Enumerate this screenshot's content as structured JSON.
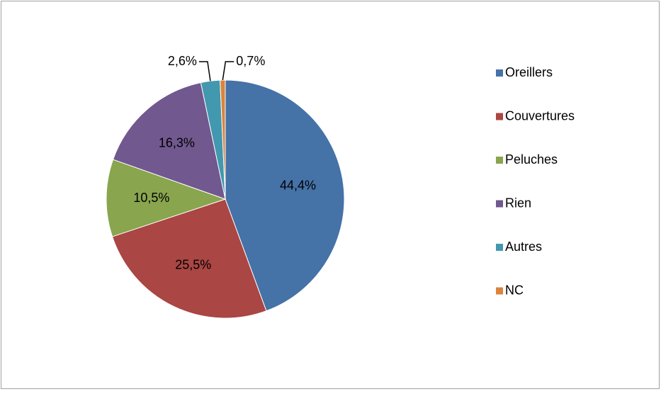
{
  "chart_data": {
    "type": "pie",
    "categories": [
      "Oreillers",
      "Couvertures",
      "Peluches",
      "Rien",
      "Autres",
      "NC"
    ],
    "values": [
      44.4,
      25.5,
      10.5,
      16.3,
      2.6,
      0.7
    ],
    "value_labels": [
      "44,4%",
      "25,5%",
      "10,5%",
      "16,3%",
      "2,6%",
      "0,7%"
    ],
    "colors": [
      "#4572a7",
      "#aa4643",
      "#89a54e",
      "#71588f",
      "#4198af",
      "#db843d"
    ],
    "legend": "right"
  }
}
